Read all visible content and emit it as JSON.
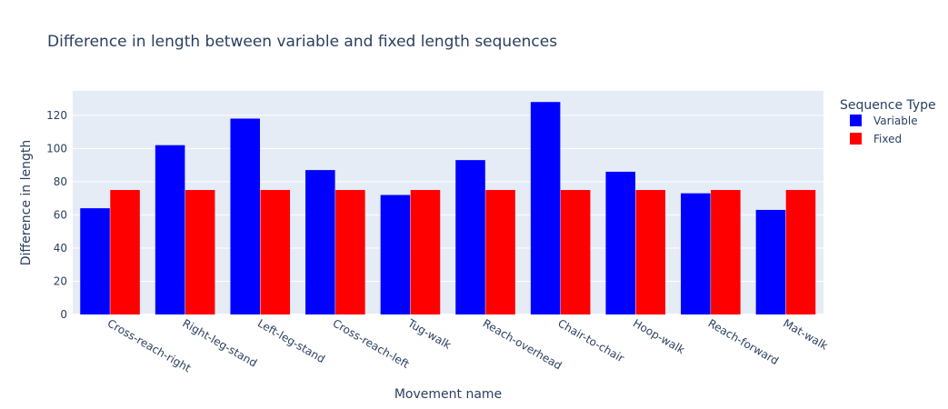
{
  "chart_data": {
    "type": "bar",
    "title": "Difference in length between variable and fixed length sequences",
    "xlabel": "Movement name",
    "ylabel": "Difference in length",
    "categories": [
      "Cross-reach-right",
      "Right-leg-stand",
      "Left-leg-stand",
      "Cross-reach-left",
      "Tug-walk",
      "Reach-overhead",
      "Chair-to-chair",
      "Hoop-walk",
      "Reach-forward",
      "Mat-walk"
    ],
    "series": [
      {
        "name": "Variable",
        "color": "#0000ff",
        "values": [
          64,
          102,
          118,
          87,
          72,
          93,
          128,
          86,
          73,
          63
        ]
      },
      {
        "name": "Fixed",
        "color": "#ff0000",
        "values": [
          75,
          75,
          75,
          75,
          75,
          75,
          75,
          75,
          75,
          75
        ]
      }
    ],
    "ylim": [
      0,
      134.7
    ],
    "yticks": [
      0,
      20,
      40,
      60,
      80,
      100,
      120
    ],
    "legend": {
      "title": "Sequence Type",
      "position": "top-right"
    },
    "grid": true,
    "plot_background": "#e5ecf6"
  }
}
